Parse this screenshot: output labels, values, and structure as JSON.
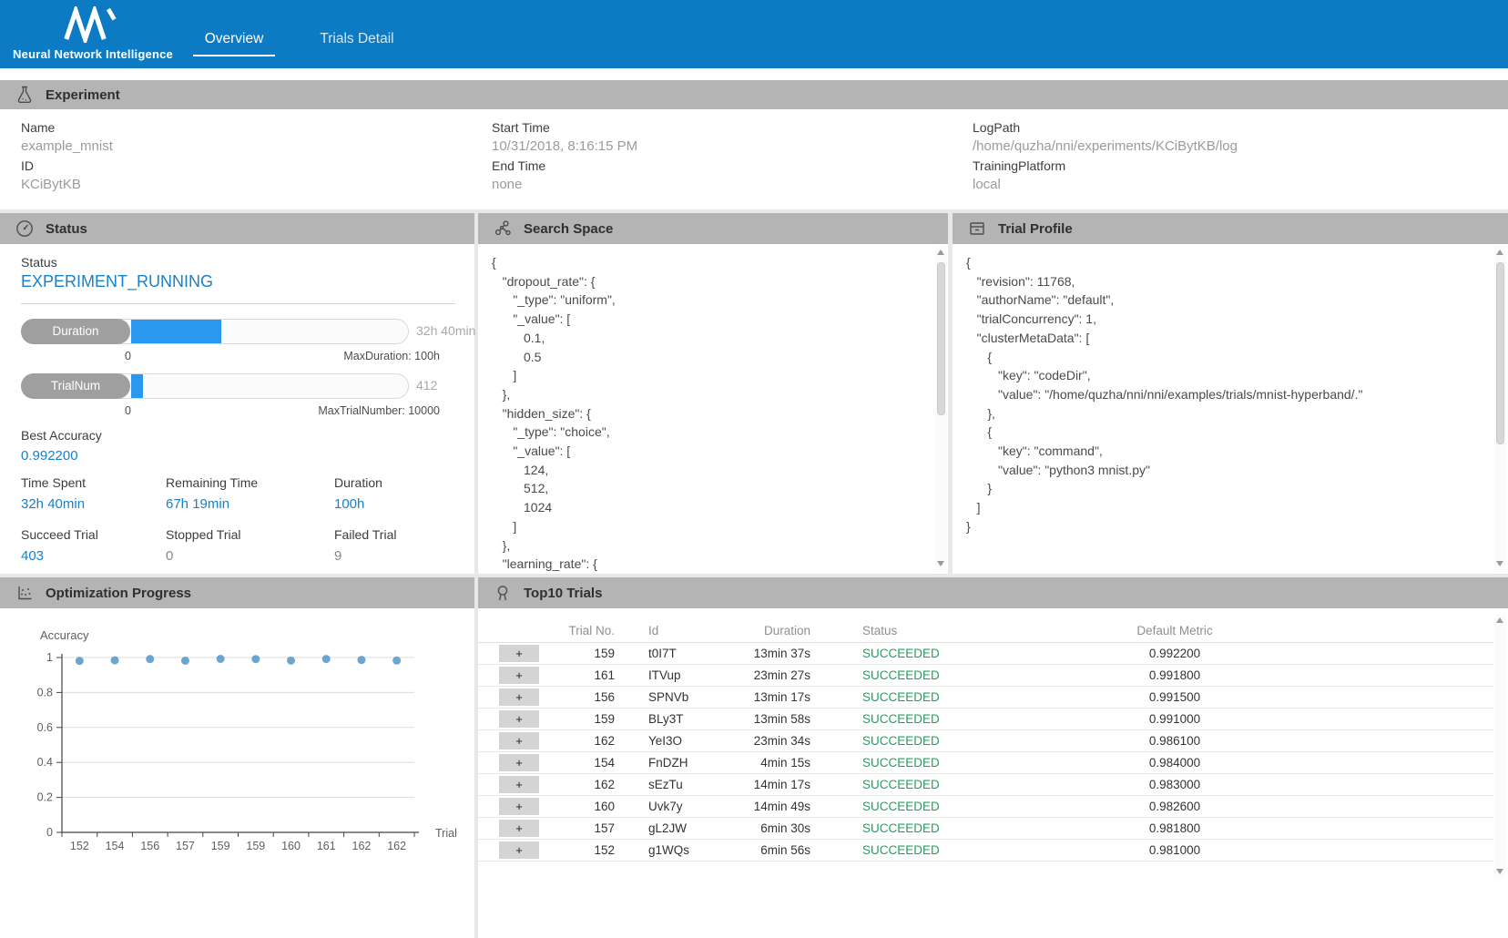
{
  "colors": {
    "navbar_blue": "#0d7bc3",
    "accent_blue": "#1a80c8",
    "progress_fill": "#2b98f0",
    "succeeded_green": "#21a15f",
    "dot_blue": "#5b9cca",
    "section_header_gray": "#b4b4b4"
  },
  "navbar": {
    "logo_subtitle": "Neural Network Intelligence",
    "tabs": [
      {
        "label": "Overview",
        "active": true
      },
      {
        "label": "Trials Detail",
        "active": false
      }
    ]
  },
  "experiment": {
    "title": "Experiment",
    "columns": [
      [
        {
          "label": "Name",
          "value": "example_mnist"
        },
        {
          "label": "ID",
          "value": "KCiBytKB"
        }
      ],
      [
        {
          "label": "Start Time",
          "value": "10/31/2018, 8:16:15 PM"
        },
        {
          "label": "End Time",
          "value": "none"
        }
      ],
      [
        {
          "label": "LogPath",
          "value": "/home/quzha/nni/experiments/KCiBytKB/log"
        },
        {
          "label": "TrainingPlatform",
          "value": "local"
        }
      ]
    ]
  },
  "status": {
    "title": "Status",
    "field_label": "Status",
    "value": "EXPERIMENT_RUNNING",
    "bars": [
      {
        "label": "Duration",
        "value": "32h 40min",
        "left": "0",
        "right": "MaxDuration: 100h",
        "percent": 32.67
      },
      {
        "label": "TrialNum",
        "value": "412",
        "left": "0",
        "right": "MaxTrialNumber: 10000",
        "percent": 4.12
      }
    ],
    "best_label": "Best Accuracy",
    "best_value": "0.992200",
    "stats": [
      {
        "label": "Time Spent",
        "value": "32h 40min",
        "accent": true
      },
      {
        "label": "Remaining Time",
        "value": "67h 19min",
        "accent": true
      },
      {
        "label": "Duration",
        "value": "100h",
        "accent": true
      },
      {
        "label": "Succeed Trial",
        "value": "403",
        "accent": true
      },
      {
        "label": "Stopped Trial",
        "value": "0",
        "accent": false
      },
      {
        "label": "Failed Trial",
        "value": "9",
        "accent": false
      }
    ]
  },
  "search_space": {
    "title": "Search Space",
    "lines": [
      "{",
      "   \"dropout_rate\": {",
      "      \"_type\": \"uniform\",",
      "      \"_value\": [",
      "         0.1,",
      "         0.5",
      "      ]",
      "   },",
      "   \"hidden_size\": {",
      "      \"_type\": \"choice\",",
      "      \"_value\": [",
      "         124,",
      "         512,",
      "         1024",
      "      ]",
      "   },",
      "   \"learning_rate\": {"
    ]
  },
  "trial_profile": {
    "title": "Trial Profile",
    "lines": [
      "{",
      "   \"revision\": 11768,",
      "   \"authorName\": \"default\",",
      "   \"trialConcurrency\": 1,",
      "   \"clusterMetaData\": [",
      "      {",
      "         \"key\": \"codeDir\",",
      "         \"value\": \"/home/quzha/nni/nni/examples/trials/mnist-hyperband/.\"",
      "      },",
      "      {",
      "         \"key\": \"command\",",
      "         \"value\": \"python3 mnist.py\"",
      "      }",
      "   ]",
      "}"
    ]
  },
  "optimization": {
    "title": "Optimization Progress"
  },
  "chart_data": {
    "type": "scatter",
    "title": "Accuracy",
    "xlabel": "Trial",
    "ylabel": "Accuracy",
    "x_tick_labels": [
      "152",
      "154",
      "156",
      "157",
      "159",
      "159",
      "160",
      "161",
      "162",
      "162"
    ],
    "values": [
      0.981,
      0.984,
      0.9915,
      0.9818,
      0.9922,
      0.991,
      0.9826,
      0.9918,
      0.9861,
      0.983
    ],
    "y_ticks": [
      0,
      0.2,
      0.4,
      0.6,
      0.8,
      1
    ],
    "ylim": [
      0,
      1
    ],
    "grid": true,
    "legend": "none"
  },
  "top10": {
    "title": "Top10 Trials",
    "expand_label": "+",
    "columns": [
      "",
      "Trial No.",
      "Id",
      "Duration",
      "Status",
      "Default Metric"
    ],
    "rows": [
      {
        "trial_no": "159",
        "id": "t0I7T",
        "duration": "13min 37s",
        "status": "SUCCEEDED",
        "metric": "0.992200"
      },
      {
        "trial_no": "161",
        "id": "ITVup",
        "duration": "23min 27s",
        "status": "SUCCEEDED",
        "metric": "0.991800"
      },
      {
        "trial_no": "156",
        "id": "SPNVb",
        "duration": "13min 17s",
        "status": "SUCCEEDED",
        "metric": "0.991500"
      },
      {
        "trial_no": "159",
        "id": "BLy3T",
        "duration": "13min 58s",
        "status": "SUCCEEDED",
        "metric": "0.991000"
      },
      {
        "trial_no": "162",
        "id": "YeI3O",
        "duration": "23min 34s",
        "status": "SUCCEEDED",
        "metric": "0.986100"
      },
      {
        "trial_no": "154",
        "id": "FnDZH",
        "duration": "4min 15s",
        "status": "SUCCEEDED",
        "metric": "0.984000"
      },
      {
        "trial_no": "162",
        "id": "sEzTu",
        "duration": "14min 17s",
        "status": "SUCCEEDED",
        "metric": "0.983000"
      },
      {
        "trial_no": "160",
        "id": "Uvk7y",
        "duration": "14min 49s",
        "status": "SUCCEEDED",
        "metric": "0.982600"
      },
      {
        "trial_no": "157",
        "id": "gL2JW",
        "duration": "6min 30s",
        "status": "SUCCEEDED",
        "metric": "0.981800"
      },
      {
        "trial_no": "152",
        "id": "g1WQs",
        "duration": "6min 56s",
        "status": "SUCCEEDED",
        "metric": "0.981000"
      }
    ]
  }
}
